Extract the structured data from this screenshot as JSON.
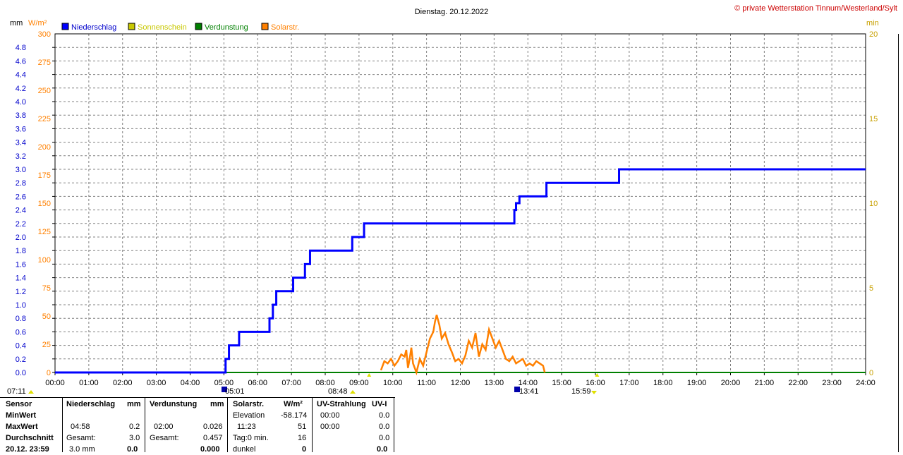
{
  "header": {
    "title": "Dienstag. 20.12.2022",
    "credit": "© private Wetterstation Tinnum/Westerland/Sylt"
  },
  "axis_units": {
    "left_mm": "mm",
    "left_wm2": "W/m²",
    "right_min": "min"
  },
  "legend": [
    {
      "label": "Niederschlag",
      "color": "#0000ff"
    },
    {
      "label": "Sonnenschein",
      "color": "#c8c800"
    },
    {
      "label": "Verdunstung",
      "color": "#008000"
    },
    {
      "label": "Solarstr.",
      "color": "#ff8000"
    }
  ],
  "colors": {
    "rain": "#0000ff",
    "solar": "#ff8000",
    "sun": "#c8c800",
    "evap": "#008000",
    "grid": "#808080",
    "credit": "#cc0000"
  },
  "sun_markers": {
    "sunrise_offset": "07:11",
    "event_0501": "05:01",
    "event_0848": "08:48",
    "event_1341": "13:41",
    "event_1559": "15:59"
  },
  "chart_data": {
    "type": "line",
    "title": "Dienstag. 20.12.2022",
    "x_ticks": [
      "00:00",
      "01:00",
      "02:00",
      "03:00",
      "04:00",
      "05:00",
      "06:00",
      "07:00",
      "08:00",
      "09:00",
      "10:00",
      "11:00",
      "12:00",
      "13:00",
      "14:00",
      "15:00",
      "16:00",
      "17:00",
      "18:00",
      "19:00",
      "20:00",
      "21:00",
      "22:00",
      "23:00",
      "24:00"
    ],
    "y_left_mm_ticks": [
      "0.0",
      "0.2",
      "0.4",
      "0.6",
      "0.8",
      "1.0",
      "1.2",
      "1.4",
      "1.6",
      "1.8",
      "2.0",
      "2.2",
      "2.4",
      "2.6",
      "2.8",
      "3.0",
      "3.2",
      "3.4",
      "3.6",
      "3.8",
      "4.0",
      "4.2",
      "4.4",
      "4.6",
      "4.8"
    ],
    "y_left_wm2_ticks": [
      "0",
      "25",
      "50",
      "75",
      "100",
      "125",
      "150",
      "175",
      "200",
      "225",
      "250",
      "275",
      "300"
    ],
    "y_right_min_ticks": [
      "0",
      "5",
      "10",
      "15",
      "20"
    ],
    "ylim_mm": [
      0,
      5
    ],
    "ylim_wm2": [
      0,
      300
    ],
    "ylim_min": [
      0,
      20
    ],
    "series": [
      {
        "name": "Niederschlag",
        "unit": "mm",
        "x_hours": [
          0,
          4.97,
          5.05,
          5.15,
          5.35,
          5.45,
          6.3,
          6.35,
          6.45,
          6.55,
          6.95,
          7.05,
          7.35,
          7.4,
          7.55,
          8.75,
          8.8,
          9.1,
          9.15,
          13.55,
          13.6,
          13.65,
          13.75,
          14.5,
          14.55,
          16.65,
          16.7,
          24
        ],
        "values": [
          0,
          0,
          0.2,
          0.4,
          0.4,
          0.6,
          0.6,
          0.8,
          1.0,
          1.2,
          1.2,
          1.4,
          1.4,
          1.6,
          1.8,
          1.8,
          2.0,
          2.0,
          2.2,
          2.2,
          2.4,
          2.5,
          2.6,
          2.6,
          2.8,
          2.8,
          3.0,
          3.0
        ]
      },
      {
        "name": "Verdunstung",
        "unit": "mm",
        "x_hours": [
          0,
          24
        ],
        "values": [
          0,
          0
        ]
      },
      {
        "name": "Solarstr.",
        "unit": "W/m²",
        "x_hours": [
          9.65,
          9.75,
          9.85,
          9.95,
          10.05,
          10.15,
          10.25,
          10.35,
          10.4,
          10.45,
          10.5,
          10.55,
          10.6,
          10.7,
          10.8,
          10.9,
          11.0,
          11.1,
          11.2,
          11.25,
          11.3,
          11.38,
          11.45,
          11.55,
          11.65,
          11.75,
          11.85,
          11.95,
          12.05,
          12.15,
          12.25,
          12.35,
          12.45,
          12.55,
          12.65,
          12.75,
          12.85,
          12.95,
          13.05,
          13.15,
          13.25,
          13.35,
          13.45,
          13.55,
          13.65,
          13.75,
          13.85,
          13.95,
          14.05,
          14.15,
          14.25,
          14.35,
          14.45,
          14.5
        ],
        "values": [
          2,
          10,
          8,
          12,
          6,
          10,
          16,
          14,
          20,
          4,
          12,
          22,
          8,
          0,
          12,
          6,
          18,
          30,
          36,
          45,
          51,
          42,
          30,
          35,
          25,
          18,
          10,
          12,
          8,
          15,
          28,
          22,
          35,
          14,
          25,
          20,
          38,
          30,
          22,
          28,
          20,
          12,
          10,
          14,
          8,
          10,
          12,
          6,
          8,
          6,
          10,
          8,
          6,
          0
        ]
      }
    ]
  },
  "table": {
    "headers": {
      "sensor": "Sensor",
      "rain": "Niederschlag",
      "rain_unit": "mm",
      "evap": "Verdunstung",
      "evap_unit": "mm",
      "solar": "Solarstr.",
      "solar_unit": "W/m²",
      "uv": "UV-Strahlung",
      "uv_unit": "UV-I"
    },
    "rows": [
      {
        "label": "MinWert",
        "rain_t": "",
        "rain_v": "",
        "evap_t": "",
        "evap_v": "",
        "solar_t": "Elevation",
        "solar_v": "-58.174",
        "uv_t": "00:00",
        "uv_v": "0.0"
      },
      {
        "label": "MaxWert",
        "rain_t": "04:58",
        "rain_v": "0.2",
        "evap_t": "02:00",
        "evap_v": "0.026",
        "solar_t": "11:23",
        "solar_v": "51",
        "uv_t": "00:00",
        "uv_v": "0.0"
      },
      {
        "label": "Durchschnitt",
        "rain_t": "Gesamt:",
        "rain_v": "3.0",
        "evap_t": "Gesamt:",
        "evap_v": "0.457",
        "solar_t": "Tag:0 min.",
        "solar_v": "16",
        "uv_t": "",
        "uv_v": "0.0"
      },
      {
        "label": "20.12. 23:59",
        "rain_t": "3.0 mm",
        "rain_v": "0.0",
        "evap_t": "",
        "evap_v": "0.000",
        "solar_t": "dunkel",
        "solar_v": "0",
        "uv_t": "",
        "uv_v": "0.0"
      }
    ]
  }
}
